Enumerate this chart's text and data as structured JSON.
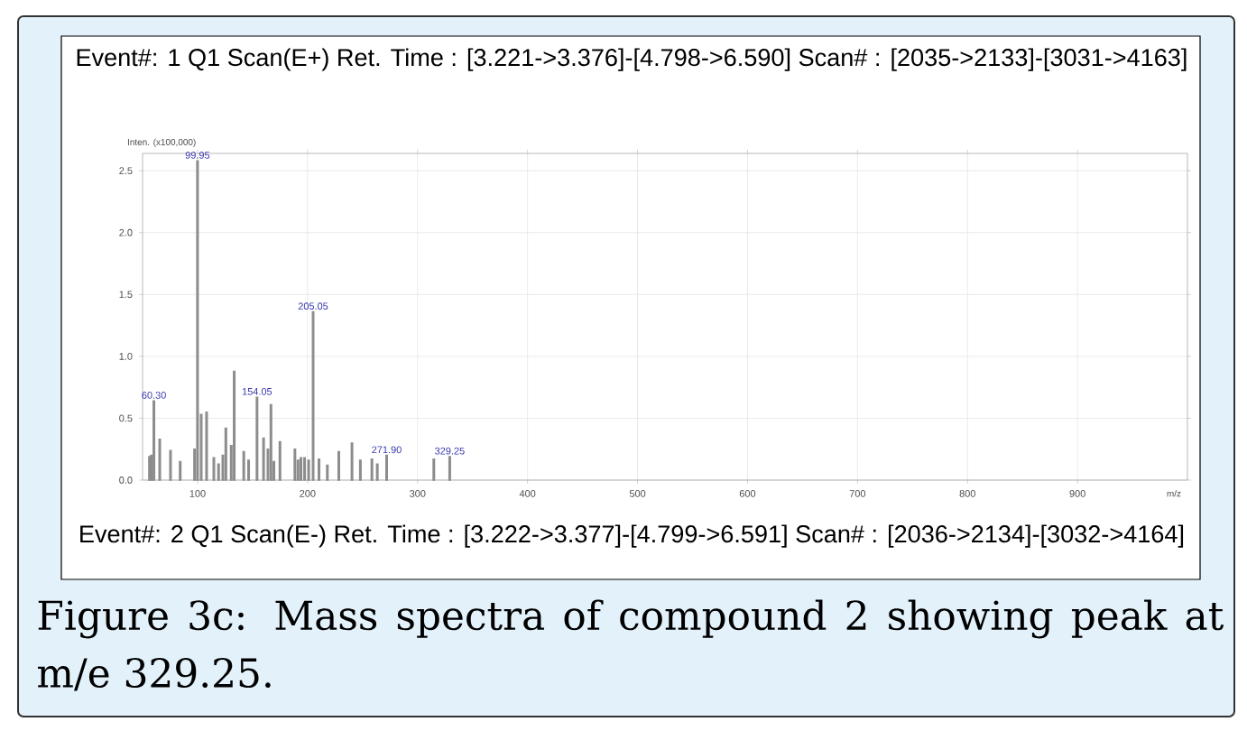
{
  "chart_data": {
    "type": "bar",
    "title": "Event#: 1 Q1 Scan(E+)   Ret. Time : [3.221->3.376]-[4.798->6.590]   Scan# : [2035->2133]-[3031->4163]",
    "ylabel": "Inten. (x100,000)",
    "xlabel": "m/z",
    "x": [
      56.3,
      58.0,
      60.3,
      65.6,
      75.4,
      84.2,
      97.3,
      99.95,
      103.3,
      108.2,
      114.8,
      119.1,
      123.0,
      125.7,
      130.6,
      133.3,
      142.0,
      146.4,
      154.05,
      160.0,
      164.0,
      166.7,
      169.4,
      174.9,
      188.5,
      191.3,
      194.0,
      197.3,
      201.0,
      205.05,
      210.4,
      218.0,
      228.4,
      240.4,
      248.0,
      258.5,
      263.4,
      271.9,
      314.8,
      329.25
    ],
    "values": [
      0.19,
      0.2,
      0.64,
      0.33,
      0.24,
      0.15,
      0.25,
      2.58,
      0.53,
      0.55,
      0.18,
      0.13,
      0.2,
      0.42,
      0.28,
      0.88,
      0.23,
      0.16,
      0.67,
      0.34,
      0.25,
      0.61,
      0.15,
      0.31,
      0.25,
      0.16,
      0.18,
      0.18,
      0.16,
      1.36,
      0.17,
      0.12,
      0.23,
      0.3,
      0.16,
      0.17,
      0.13,
      0.2,
      0.17,
      0.19
    ],
    "color": "#8c8c8c",
    "xlim": [
      50,
      1000
    ],
    "ylim": [
      0,
      2.64
    ],
    "xticks": [
      100,
      200,
      300,
      400,
      500,
      600,
      700,
      800,
      900
    ],
    "yticks": [
      {
        "value": 0,
        "label": "0.0"
      },
      0.5,
      {
        "value": 1,
        "label": "1.0"
      },
      1.5,
      {
        "value": 2,
        "label": "2.0"
      },
      2.5
    ],
    "grid": true,
    "annotations": [
      "Event#: 2 Q1 Scan(E-)   Ret. Time : [3.222->3.377]-[4.799->6.591]   Scan# : [2036->2134]-[3032->4164]",
      "Figure 3c: Mass spectra of compound 2 showing peak at m/e 329.25.",
      {
        "text": "60.30",
        "x": 60.3,
        "y": 0.64
      },
      {
        "text": "99.95",
        "x": 99.95,
        "y": 2.58
      },
      {
        "text": "154.05",
        "x": 154.05,
        "y": 0.67
      },
      {
        "text": "205.05",
        "x": 205.05,
        "y": 1.36
      },
      {
        "text": "271.90",
        "x": 271.9,
        "y": 0.2
      },
      {
        "text": "329.25",
        "x": 329.25,
        "y": 0.19
      }
    ]
  }
}
